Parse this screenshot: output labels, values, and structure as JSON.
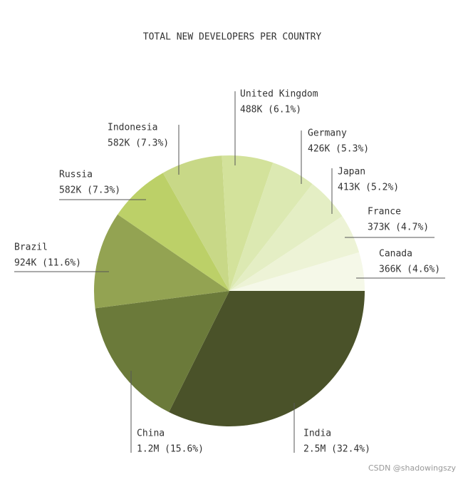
{
  "chart_data": {
    "type": "pie",
    "title": "TOTAL NEW DEVELOPERS PER COUNTRY",
    "categories": [
      "India",
      "China",
      "Brazil",
      "Russia",
      "Indonesia",
      "United Kingdom",
      "Germany",
      "Japan",
      "France",
      "Canada"
    ],
    "values": [
      32.4,
      15.6,
      11.6,
      7.3,
      7.3,
      6.1,
      5.3,
      5.2,
      4.7,
      4.6
    ],
    "value_labels": [
      "2.5M (32.4%)",
      "1.2M (15.6%)",
      "924K (11.6%)",
      "582K (7.3%)",
      "582K (7.3%)",
      "488K (6.1%)",
      "426K (5.3%)",
      "413K (5.2%)",
      "373K (4.7%)",
      "366K (4.6%)"
    ],
    "colors": [
      "#4a5229",
      "#6b7a3a",
      "#93a352",
      "#bcd068",
      "#c8d887",
      "#d3e29b",
      "#dce9b2",
      "#e4eec4",
      "#edf3d6",
      "#f5f8e8"
    ]
  },
  "watermark": "CSDN @shadowingszy"
}
